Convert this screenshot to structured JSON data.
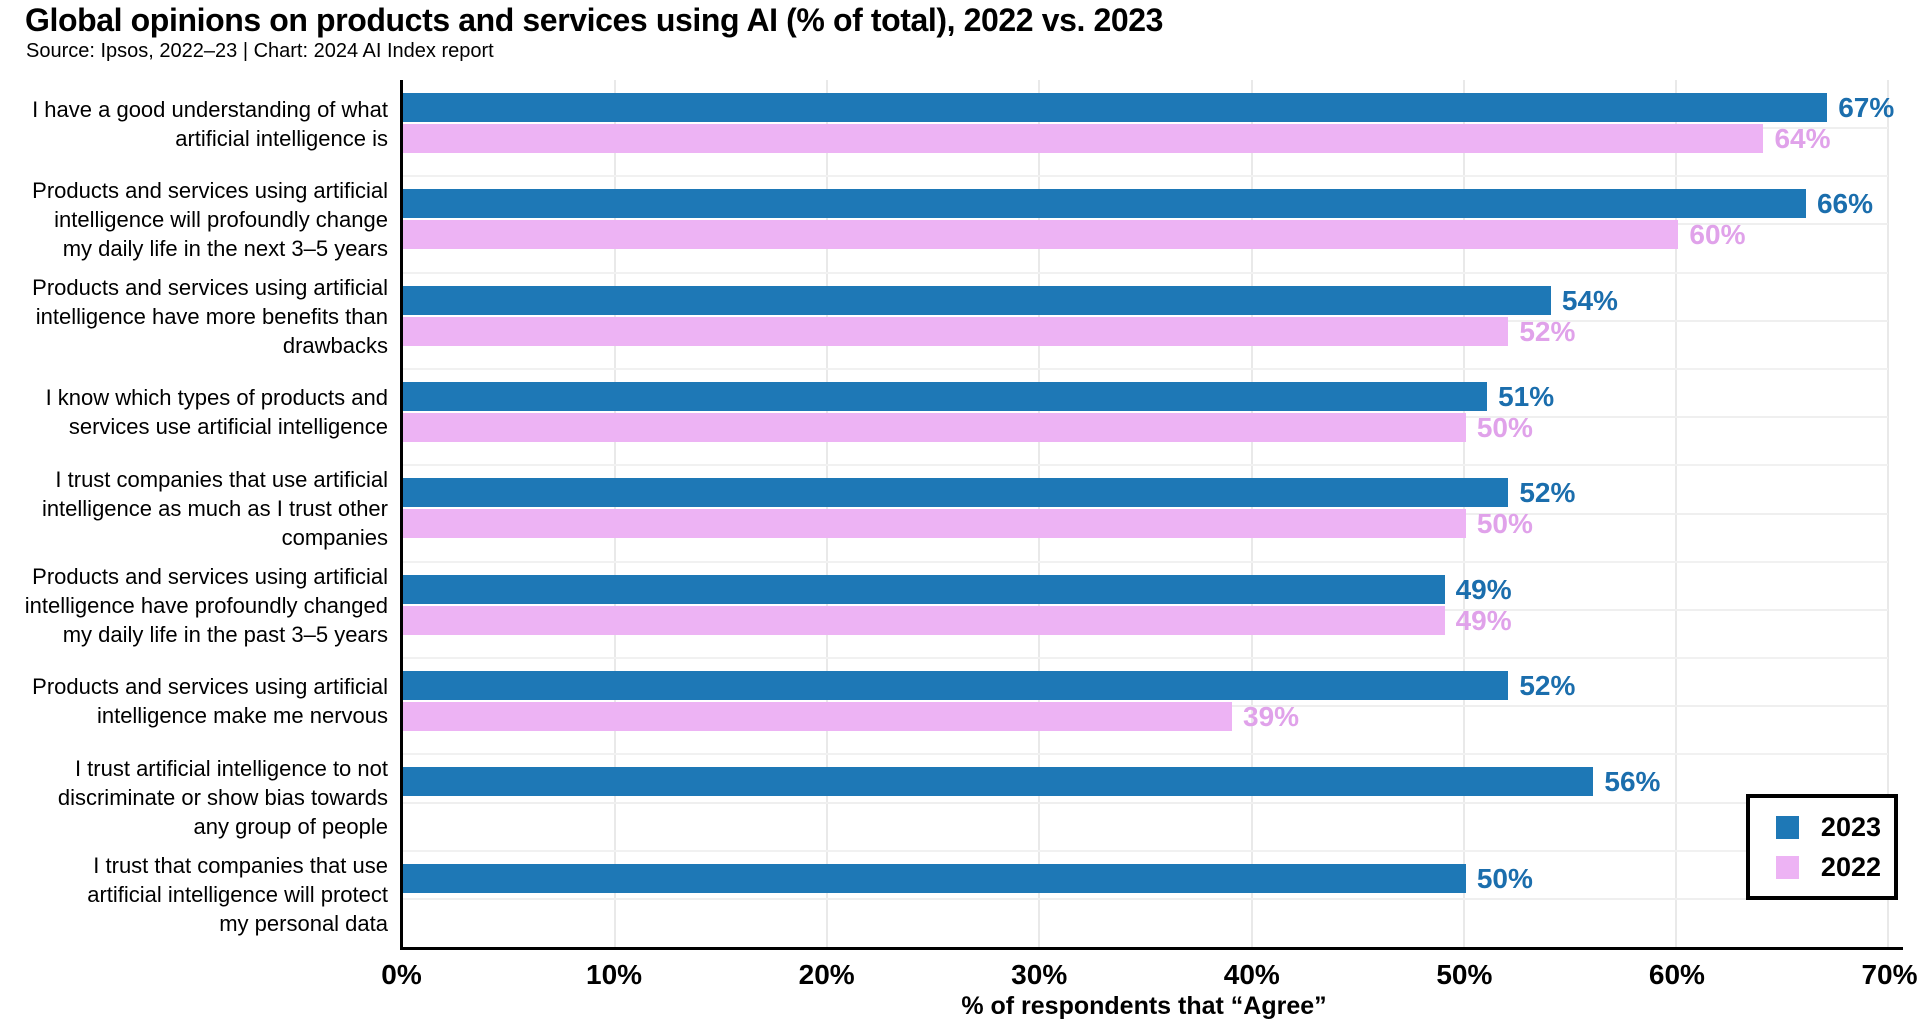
{
  "header": {
    "title": "Global opinions on products and services using AI (% of total), 2022 vs. 2023",
    "subtitle": "Source: Ipsos, 2022–23 | Chart: 2024 AI Index report"
  },
  "chart_data": {
    "type": "bar",
    "orientation": "horizontal",
    "title": "Global opinions on products and services using AI (% of total), 2022 vs. 2023",
    "xlabel": "% of respondents that “Agree”",
    "xlim": [
      0,
      70
    ],
    "x_ticks": [
      "0%",
      "10%",
      "20%",
      "30%",
      "40%",
      "50%",
      "60%",
      "70%"
    ],
    "grid": true,
    "legend_position": "lower right",
    "value_label_suffix": "%",
    "categories": [
      "I have a good understanding of what artificial intelligence is",
      "Products and services using artificial intelligence will profoundly change my daily life in the next 3–5 years",
      "Products and services using artificial intelligence have more benefits than drawbacks",
      "I know which types of products and services use artificial intelligence",
      "I trust companies that use artificial intelligence as much as I trust other companies",
      "Products and services using artificial intelligence have profoundly changed my daily life in the past 3–5 years",
      "Products and services using artificial intelligence make me nervous",
      "I trust artificial intelligence to not discriminate or show bias towards any group of people",
      "I trust that companies that use artificial intelligence will protect my personal data"
    ],
    "category_lines": [
      [
        "I have a good understanding of what",
        "artificial intelligence is"
      ],
      [
        "Products and services using artificial",
        "intelligence will profoundly change",
        "my daily life in the next 3–5 years"
      ],
      [
        "Products and services using artificial",
        "intelligence have more benefits than",
        "drawbacks"
      ],
      [
        "I know which types of products and",
        "services use artificial intelligence"
      ],
      [
        "I trust companies that use artificial",
        "intelligence as much as I trust other",
        "companies"
      ],
      [
        "Products and services using artificial",
        "intelligence have profoundly changed",
        "my daily life in the past 3–5 years"
      ],
      [
        "Products and services using artificial",
        "intelligence make me nervous"
      ],
      [
        "I trust artificial intelligence to not",
        "discriminate or show bias towards",
        "any group of people"
      ],
      [
        "I trust that companies that use",
        "artificial intelligence will protect",
        "my personal data"
      ]
    ],
    "series": [
      {
        "name": "2023",
        "color": "#1E78B6",
        "label_color": "#1B6EAD",
        "values": [
          67,
          66,
          54,
          51,
          52,
          49,
          52,
          56,
          50
        ]
      },
      {
        "name": "2022",
        "color": "#EDB3F4",
        "label_color": "#E0A2EA",
        "values": [
          64,
          60,
          52,
          50,
          50,
          49,
          39,
          null,
          null
        ]
      }
    ]
  },
  "axes_colors": {
    "axis_line": "#000000",
    "vertical_gridline": "#e9e9e9",
    "horizontal_gridline": "#f1f1f1"
  }
}
